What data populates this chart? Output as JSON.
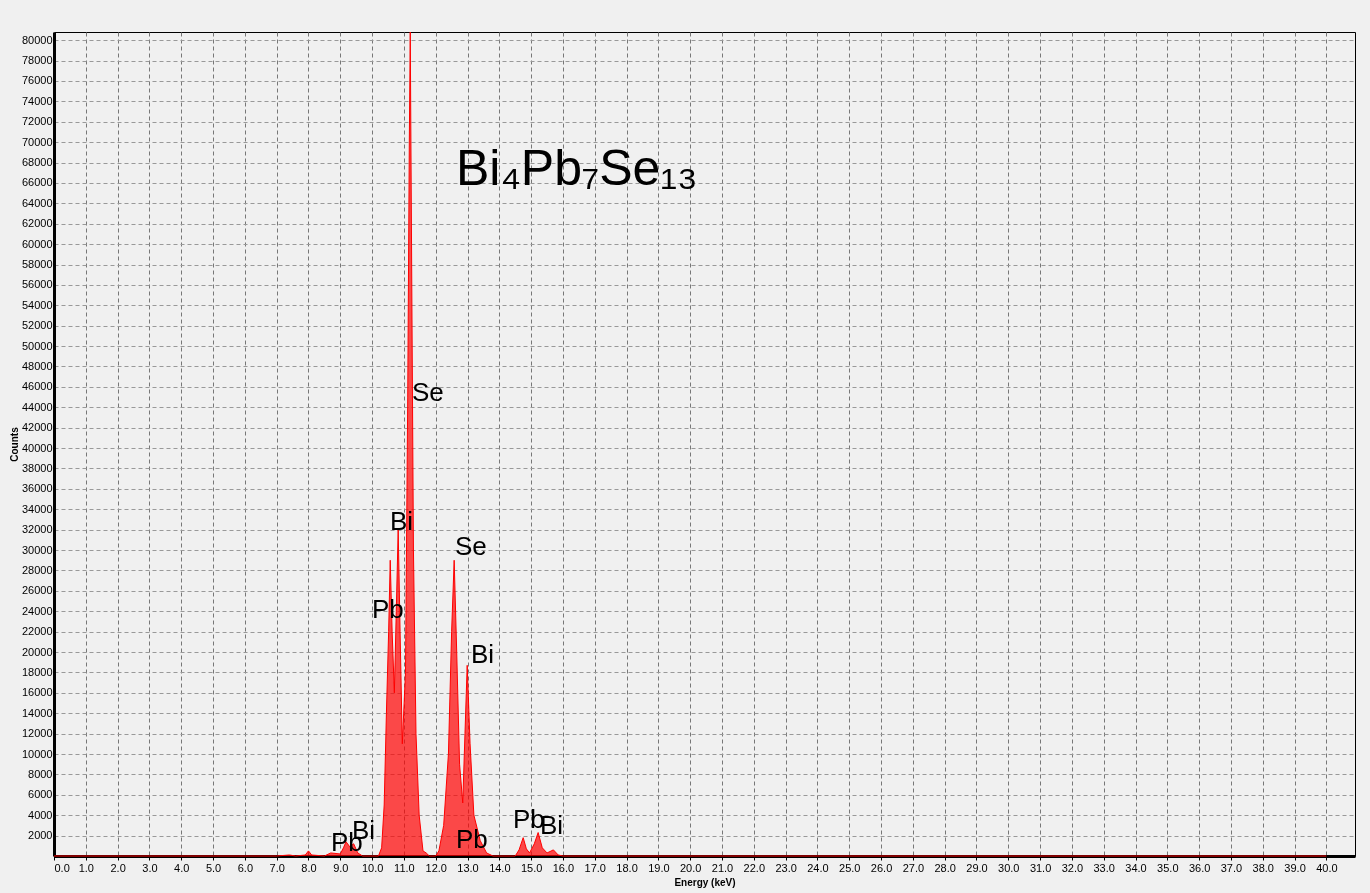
{
  "chart_data": {
    "type": "area",
    "title": "Bi₄Pb₇Se₁₃",
    "xlabel": "Energy (keV)",
    "ylabel": "Counts",
    "x": [
      0,
      7.0,
      7.4,
      7.6,
      7.9,
      8.0,
      8.1,
      8.5,
      8.7,
      9.0,
      9.1,
      9.18,
      9.3,
      9.42,
      9.55,
      9.7,
      10.2,
      10.3,
      10.38,
      10.45,
      10.52,
      10.57,
      10.63,
      10.7,
      10.76,
      10.82,
      10.88,
      10.95,
      11.05,
      11.12,
      11.17,
      11.2,
      11.24,
      11.3,
      11.38,
      11.48,
      11.6,
      11.7,
      11.8,
      12.0,
      12.1,
      12.25,
      12.4,
      12.5,
      12.58,
      12.66,
      12.75,
      12.85,
      12.92,
      12.99,
      13.08,
      13.2,
      13.4,
      13.6,
      13.8,
      14.5,
      14.62,
      14.75,
      14.85,
      14.95,
      15.1,
      15.22,
      15.35,
      15.5,
      15.7,
      15.85,
      16.0,
      40.0
    ],
    "series": [
      {
        "color": "#ff0000",
        "values": [
          0,
          0,
          100,
          0,
          100,
          500,
          100,
          0,
          300,
          200,
          800,
          1400,
          900,
          1200,
          300,
          0,
          0,
          800,
          5000,
          14000,
          22000,
          29000,
          22000,
          16000,
          24000,
          32000,
          22000,
          11000,
          18000,
          45000,
          70000,
          80800,
          60000,
          30000,
          12000,
          4000,
          500,
          300,
          0,
          0,
          500,
          3000,
          10000,
          22000,
          29000,
          20000,
          9000,
          5200,
          12000,
          18700,
          11000,
          4000,
          1500,
          300,
          0,
          0,
          600,
          1800,
          700,
          300,
          1200,
          2300,
          800,
          300,
          600,
          100,
          0,
          0
        ]
      }
    ],
    "xlim": [
      0,
      40.9
    ],
    "ylim": [
      0,
      80800
    ],
    "xticks": [
      {
        "value": 0,
        "label": "0.0"
      },
      {
        "value": 1,
        "label": "1.0"
      },
      {
        "value": 2,
        "label": "2.0"
      },
      {
        "value": 3,
        "label": "3.0"
      },
      {
        "value": 4,
        "label": "4.0"
      },
      {
        "value": 5,
        "label": "5.0"
      },
      {
        "value": 6,
        "label": "6.0"
      },
      {
        "value": 7,
        "label": "7.0"
      },
      {
        "value": 8,
        "label": "8.0"
      },
      {
        "value": 9,
        "label": "9.0"
      },
      {
        "value": 10,
        "label": "10.0"
      },
      {
        "value": 11,
        "label": "11.0"
      },
      {
        "value": 12,
        "label": "12.0"
      },
      {
        "value": 13,
        "label": "13.0"
      },
      {
        "value": 14,
        "label": "14.0"
      },
      {
        "value": 15,
        "label": "15.0"
      },
      {
        "value": 16,
        "label": "16.0"
      },
      {
        "value": 17,
        "label": "17.0"
      },
      {
        "value": 18,
        "label": "18.0"
      },
      {
        "value": 19,
        "label": "19.0"
      },
      {
        "value": 20,
        "label": "20.0"
      },
      {
        "value": 21,
        "label": "21.0"
      },
      {
        "value": 22,
        "label": "22.0"
      },
      {
        "value": 23,
        "label": "23.0"
      },
      {
        "value": 24,
        "label": "24.0"
      },
      {
        "value": 25,
        "label": "25.0"
      },
      {
        "value": 26,
        "label": "26.0"
      },
      {
        "value": 27,
        "label": "27.0"
      },
      {
        "value": 28,
        "label": "28.0"
      },
      {
        "value": 29,
        "label": "29.0"
      },
      {
        "value": 30,
        "label": "30.0"
      },
      {
        "value": 31,
        "label": "31.0"
      },
      {
        "value": 32,
        "label": "32.0"
      },
      {
        "value": 33,
        "label": "33.0"
      },
      {
        "value": 34,
        "label": "34.0"
      },
      {
        "value": 35,
        "label": "35.0"
      },
      {
        "value": 36,
        "label": "36.0"
      },
      {
        "value": 37,
        "label": "37.0"
      },
      {
        "value": 38,
        "label": "38.0"
      },
      {
        "value": 39,
        "label": "39.0"
      },
      {
        "value": 40,
        "label": "40.0"
      }
    ],
    "yticks": [
      2000,
      4000,
      6000,
      8000,
      10000,
      12000,
      14000,
      16000,
      18000,
      20000,
      22000,
      24000,
      26000,
      28000,
      30000,
      32000,
      34000,
      36000,
      38000,
      40000,
      42000,
      44000,
      46000,
      48000,
      50000,
      52000,
      54000,
      56000,
      58000,
      60000,
      62000,
      64000,
      66000,
      68000,
      70000,
      72000,
      74000,
      76000,
      78000,
      80000
    ],
    "grid": true,
    "annotations": [
      "Se",
      "Bi",
      "Se",
      "Pb",
      "Bi",
      "Pb",
      "Bi",
      "Pb",
      "Pb",
      "Bi"
    ]
  }
}
